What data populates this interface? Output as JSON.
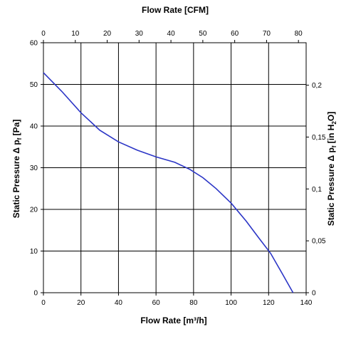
{
  "chart_data": {
    "type": "line",
    "top_axis": {
      "title": "Flow Rate [CFM]",
      "range": [
        0,
        80
      ],
      "ticks": [
        "0",
        "10",
        "20",
        "30",
        "40",
        "50",
        "60",
        "70",
        "80"
      ]
    },
    "bottom_axis": {
      "title": "Flow Rate [m³/h]",
      "range": [
        0,
        140
      ],
      "ticks": [
        "0",
        "20",
        "40",
        "60",
        "80",
        "100",
        "120",
        "140"
      ]
    },
    "left_axis": {
      "title_main": "Static Pressure Δ p",
      "title_sub": "f",
      "title_tail": " [Pa]",
      "range": [
        0,
        60
      ],
      "ticks": [
        "0",
        "10",
        "20",
        "30",
        "40",
        "50",
        "60"
      ]
    },
    "right_axis": {
      "title_main": "Static Pressure Δ p",
      "title_sub": "f",
      "title_mid": " [in H",
      "title_sub2": "2",
      "title_tail": "O]",
      "range": [
        0,
        0.2409
      ],
      "ticks": [
        "0",
        "0,05",
        "0,1",
        "0,15",
        "0,2"
      ]
    },
    "grid": true,
    "line_color": "#2b35c6",
    "series": [
      {
        "x": [
          0,
          10,
          20,
          30,
          40,
          50,
          60,
          70,
          78,
          85,
          92,
          100,
          108,
          115,
          121,
          127,
          133
        ],
        "y": [
          52.8,
          48.2,
          43.2,
          39.0,
          36.2,
          34.2,
          32.6,
          31.3,
          29.6,
          27.6,
          25.0,
          21.5,
          17.2,
          13.0,
          9.5,
          4.8,
          0
        ]
      }
    ]
  }
}
